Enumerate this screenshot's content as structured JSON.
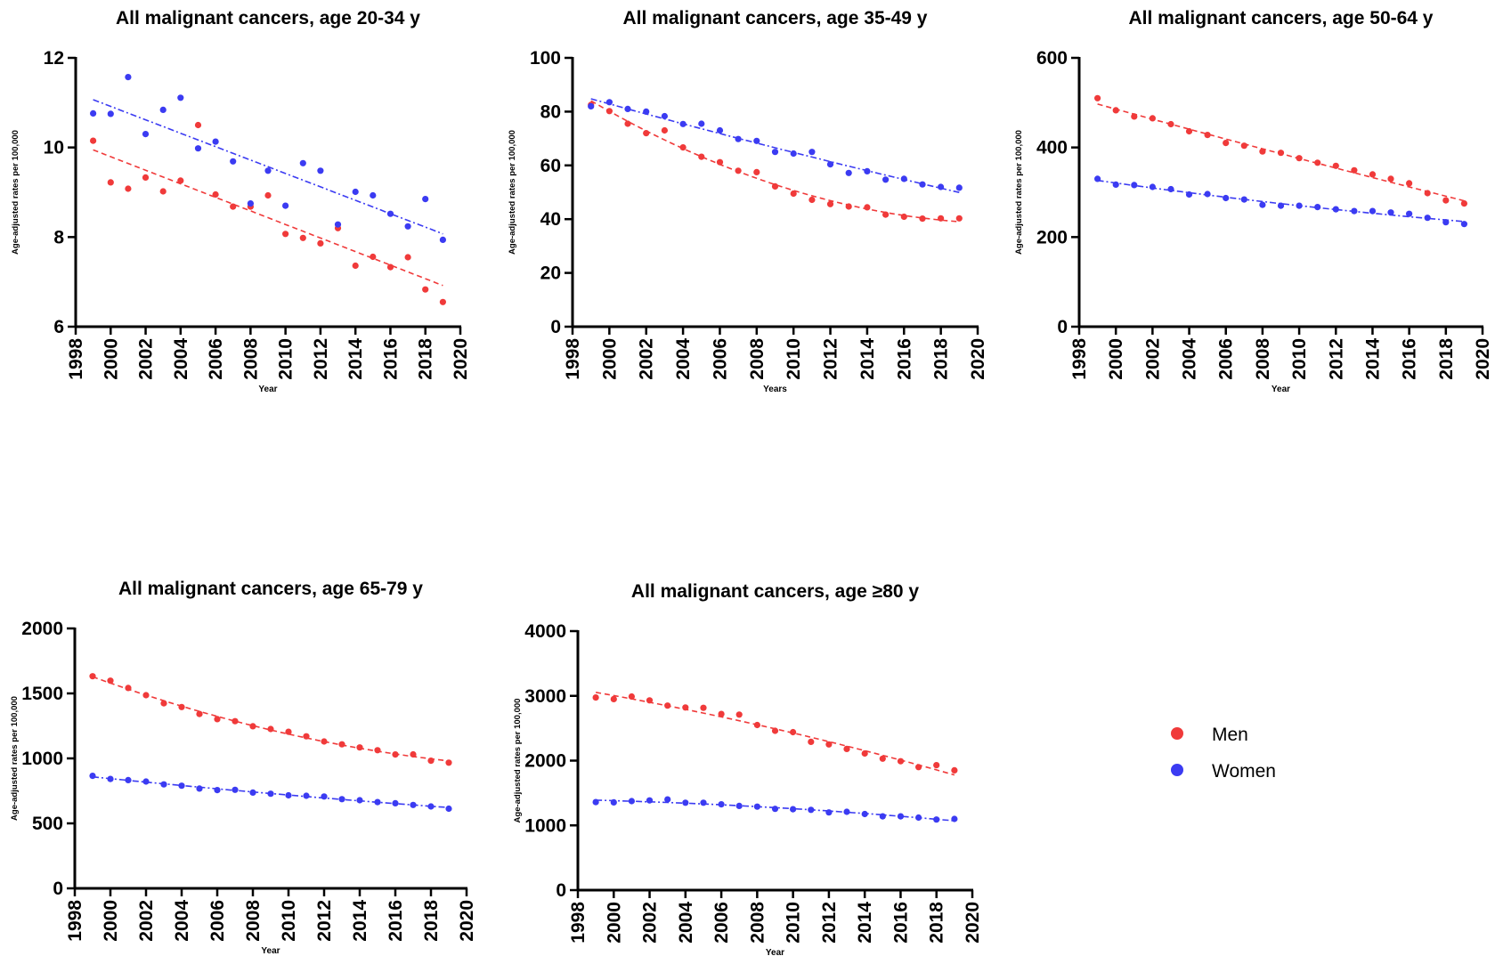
{
  "colors": {
    "men": "#F03A3A",
    "women": "#3B3BF2",
    "axis": "#000000"
  },
  "legend": {
    "placement": "right",
    "items": [
      {
        "label": "Men",
        "color": "#F03A3A"
      },
      {
        "label": "Women",
        "color": "#3B3BF2"
      }
    ]
  },
  "chart_data": [
    {
      "type": "scatter",
      "title": "All malignant cancers, age 20-34 y",
      "xlabel": "Year",
      "ylabel": "Age-adjusted rates per 100,000",
      "xlim": [
        1998,
        2020
      ],
      "xticks": [
        1998,
        2000,
        2002,
        2004,
        2006,
        2008,
        2010,
        2012,
        2014,
        2016,
        2018,
        2020
      ],
      "ylim": [
        6,
        12
      ],
      "yticks": [
        6,
        8,
        10,
        12
      ],
      "x": [
        1999,
        2000,
        2001,
        2002,
        2003,
        2004,
        2005,
        2006,
        2007,
        2008,
        2009,
        2010,
        2011,
        2012,
        2013,
        2014,
        2015,
        2016,
        2017,
        2018,
        2019
      ],
      "series": [
        {
          "name": "Men",
          "trend": "linear",
          "values": [
            10.15,
            9.22,
            9.08,
            9.33,
            9.02,
            9.26,
            10.5,
            8.95,
            8.68,
            8.68,
            8.93,
            8.07,
            7.98,
            7.86,
            8.2,
            7.36,
            7.56,
            7.33,
            7.55,
            6.83,
            6.55
          ]
        },
        {
          "name": "Women",
          "trend": "linear",
          "values": [
            10.76,
            10.75,
            11.57,
            10.3,
            10.84,
            11.11,
            9.98,
            10.13,
            9.69,
            8.75,
            9.48,
            8.7,
            9.65,
            9.48,
            8.28,
            9.01,
            8.93,
            8.52,
            8.24,
            8.85,
            7.94
          ]
        }
      ]
    },
    {
      "type": "scatter",
      "title": "All malignant cancers, age 35-49 y",
      "xlabel": "Years",
      "ylabel": "Age-adjusted rates per 100,000",
      "xlim": [
        1998,
        2020
      ],
      "xticks": [
        1998,
        2000,
        2002,
        2004,
        2006,
        2008,
        2010,
        2012,
        2014,
        2016,
        2018,
        2020
      ],
      "ylim": [
        0,
        100
      ],
      "yticks": [
        0,
        20,
        40,
        60,
        80,
        100
      ],
      "x": [
        1999,
        2000,
        2001,
        2002,
        2003,
        2004,
        2005,
        2006,
        2007,
        2008,
        2009,
        2010,
        2011,
        2012,
        2013,
        2014,
        2015,
        2016,
        2017,
        2018,
        2019
      ],
      "series": [
        {
          "name": "Men",
          "trend": "curve",
          "values": [
            82.5,
            80.2,
            75.5,
            72.0,
            73.0,
            66.7,
            63.2,
            61.2,
            58.0,
            57.5,
            52.2,
            49.5,
            47.2,
            45.6,
            44.7,
            44.4,
            41.7,
            40.9,
            40.2,
            40.3,
            40.3
          ]
        },
        {
          "name": "Women",
          "trend": "curve",
          "values": [
            82.0,
            83.5,
            81.0,
            80.0,
            78.3,
            75.4,
            75.5,
            73.0,
            69.8,
            69.1,
            65.0,
            64.4,
            65.0,
            60.4,
            57.2,
            57.8,
            54.7,
            55.0,
            52.9,
            52.0,
            51.7
          ]
        }
      ]
    },
    {
      "type": "scatter",
      "title": "All malignant cancers, age 50-64 y",
      "xlabel": "Year",
      "ylabel": "Age-adjusted rates per 100,000",
      "xlim": [
        1998,
        2020
      ],
      "xticks": [
        1998,
        2000,
        2002,
        2004,
        2006,
        2008,
        2010,
        2012,
        2014,
        2016,
        2018,
        2020
      ],
      "ylim": [
        0,
        600
      ],
      "yticks": [
        0,
        200,
        400,
        600
      ],
      "x": [
        1999,
        2000,
        2001,
        2002,
        2003,
        2004,
        2005,
        2006,
        2007,
        2008,
        2009,
        2010,
        2011,
        2012,
        2013,
        2014,
        2015,
        2016,
        2017,
        2018,
        2019
      ],
      "series": [
        {
          "name": "Men",
          "trend": "curve",
          "values": [
            510,
            483,
            469,
            465,
            452,
            436,
            428,
            410,
            404,
            391,
            388,
            376,
            366,
            359,
            349,
            340,
            330,
            320,
            298,
            282,
            275
          ]
        },
        {
          "name": "Women",
          "trend": "curve",
          "values": [
            330,
            317,
            316,
            312,
            307,
            295,
            296,
            287,
            284,
            272,
            270,
            270,
            267,
            262,
            258,
            258,
            255,
            252,
            243,
            233,
            229
          ]
        }
      ]
    },
    {
      "type": "scatter",
      "title": "All malignant cancers, age 65-79 y",
      "xlabel": "Year",
      "ylabel": "Age-adjusted rates per 100,000",
      "xlim": [
        1998,
        2020
      ],
      "xticks": [
        1998,
        2000,
        2002,
        2004,
        2006,
        2008,
        2010,
        2012,
        2014,
        2016,
        2018,
        2020
      ],
      "ylim": [
        0,
        2000
      ],
      "yticks": [
        0,
        500,
        1000,
        1500,
        2000
      ],
      "x": [
        1999,
        2000,
        2001,
        2002,
        2003,
        2004,
        2005,
        2006,
        2007,
        2008,
        2009,
        2010,
        2011,
        2012,
        2013,
        2014,
        2015,
        2016,
        2017,
        2018,
        2019
      ],
      "series": [
        {
          "name": "Men",
          "trend": "curve",
          "values": [
            1632,
            1598,
            1542,
            1486,
            1424,
            1395,
            1342,
            1302,
            1286,
            1247,
            1226,
            1205,
            1170,
            1130,
            1108,
            1084,
            1063,
            1030,
            1031,
            982,
            967
          ]
        },
        {
          "name": "Women",
          "trend": "curve",
          "values": [
            866,
            842,
            833,
            822,
            800,
            790,
            768,
            756,
            758,
            737,
            728,
            716,
            712,
            707,
            686,
            678,
            664,
            655,
            642,
            630,
            613
          ]
        }
      ]
    },
    {
      "type": "scatter",
      "title": "All malignant cancers, age ≥80 y",
      "xlabel": "Year",
      "ylabel": "Age-adjusted rates per 100,000",
      "xlim": [
        1998,
        2020
      ],
      "xticks": [
        1998,
        2000,
        2002,
        2004,
        2006,
        2008,
        2010,
        2012,
        2014,
        2016,
        2018,
        2020
      ],
      "ylim": [
        0,
        4000
      ],
      "yticks": [
        0,
        1000,
        2000,
        3000,
        4000
      ],
      "x": [
        1999,
        2000,
        2001,
        2002,
        2003,
        2004,
        2005,
        2006,
        2007,
        2008,
        2009,
        2010,
        2011,
        2012,
        2013,
        2014,
        2015,
        2016,
        2017,
        2018,
        2019
      ],
      "series": [
        {
          "name": "Men",
          "trend": "curve",
          "values": [
            2975,
            2950,
            2990,
            2930,
            2850,
            2820,
            2815,
            2720,
            2710,
            2550,
            2460,
            2440,
            2290,
            2250,
            2180,
            2110,
            2030,
            1990,
            1900,
            1930,
            1850
          ]
        },
        {
          "name": "Women",
          "trend": "curve",
          "values": [
            1360,
            1355,
            1375,
            1385,
            1400,
            1350,
            1350,
            1325,
            1300,
            1290,
            1255,
            1250,
            1240,
            1200,
            1210,
            1175,
            1140,
            1140,
            1120,
            1090,
            1100
          ]
        }
      ]
    }
  ]
}
